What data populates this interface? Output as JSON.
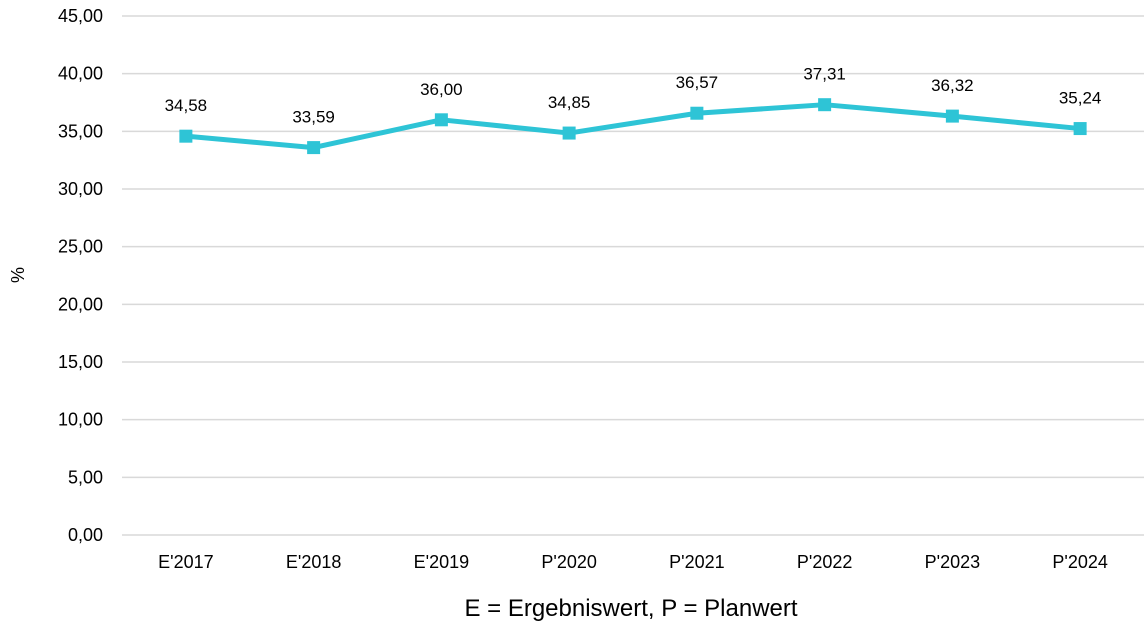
{
  "chart_data": {
    "type": "line",
    "title": "",
    "xlabel": "E = Ergebniswert, P = Planwert",
    "ylabel": "%",
    "categories": [
      "E'2017",
      "E'2018",
      "E'2019",
      "P'2020",
      "P'2021",
      "P'2022",
      "P'2023",
      "P'2024"
    ],
    "series": [
      {
        "values": [
          34.58,
          33.59,
          36.0,
          34.85,
          36.57,
          37.31,
          36.32,
          35.24
        ],
        "labels": [
          "34,58",
          "33,59",
          "36,00",
          "34,85",
          "36,57",
          "37,31",
          "36,32",
          "35,24"
        ],
        "color": "#2EC4D6",
        "marker": "square"
      }
    ],
    "ylim": [
      0,
      45
    ],
    "yticks": [
      0,
      5,
      10,
      15,
      20,
      25,
      30,
      35,
      40,
      45
    ],
    "ytick_labels": [
      "0,00",
      "5,00",
      "10,00",
      "15,00",
      "20,00",
      "25,00",
      "30,00",
      "35,00",
      "40,00",
      "45,00"
    ],
    "grid": true,
    "gridline_color": "#D9D9D9",
    "legend": "none"
  }
}
